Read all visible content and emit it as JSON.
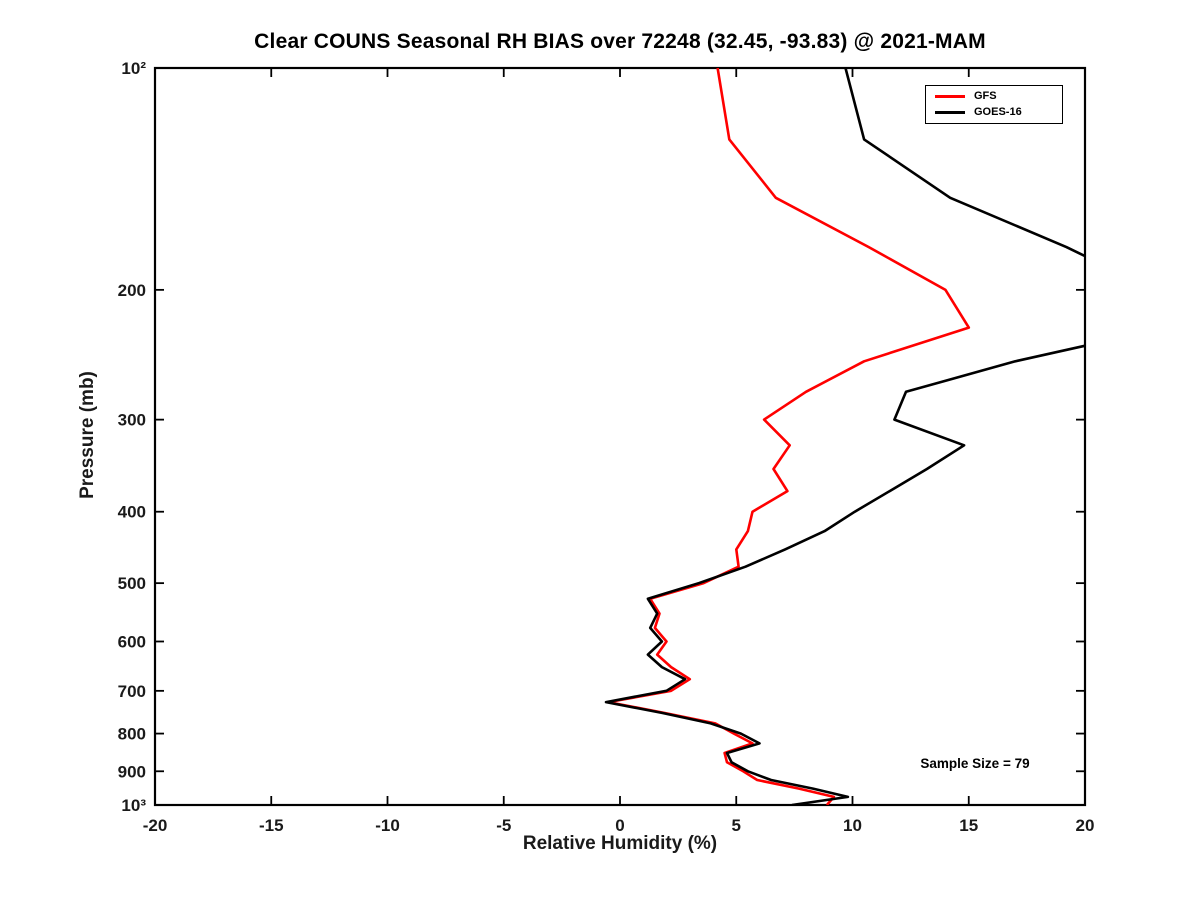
{
  "chart_data": {
    "type": "line",
    "title": "Clear COUNS Seasonal RH BIAS over 72248 (32.45, -93.83) @ 2021-MAM",
    "xlabel": "Relative Humidity (%)",
    "ylabel": "Pressure (mb)",
    "annotation": "Sample Size = 79",
    "sample_size": 79,
    "xlim": [
      -20,
      20
    ],
    "ylim": [
      100,
      1000
    ],
    "y_scale": "log",
    "grid": false,
    "legend_position": "top-right",
    "x_ticks": [
      -20,
      -15,
      -10,
      -5,
      0,
      5,
      10,
      15,
      20
    ],
    "y_ticks": [
      100,
      200,
      300,
      400,
      500,
      600,
      700,
      800,
      900,
      1000
    ],
    "y_tick_labels": [
      "10²",
      "200",
      "300",
      "400",
      "500",
      "600",
      "700",
      "800",
      "900",
      "10³"
    ],
    "pressure_mb": [
      100,
      125,
      150,
      175,
      200,
      225,
      250,
      275,
      300,
      325,
      350,
      375,
      400,
      425,
      450,
      475,
      500,
      525,
      550,
      575,
      600,
      625,
      650,
      675,
      700,
      725,
      750,
      775,
      800,
      825,
      850,
      875,
      900,
      925,
      950,
      975,
      1000
    ],
    "series": [
      {
        "name": "GFS",
        "color": "#ff0000",
        "values": [
          4.2,
          4.7,
          6.7,
          10.7,
          14.0,
          15.0,
          10.5,
          8.0,
          6.2,
          7.3,
          6.6,
          7.2,
          5.7,
          5.5,
          5.0,
          5.1,
          3.6,
          1.3,
          1.7,
          1.5,
          2.0,
          1.6,
          2.2,
          3.0,
          2.2,
          -0.5,
          1.9,
          4.1,
          4.9,
          5.7,
          4.5,
          4.6,
          5.3,
          5.9,
          7.7,
          9.2,
          8.9
        ]
      },
      {
        "name": "GOES-16",
        "color": "#000000",
        "values": [
          9.7,
          10.5,
          14.2,
          19.2,
          23.0,
          23.5,
          17.0,
          12.3,
          11.8,
          14.8,
          13.2,
          11.6,
          10.1,
          8.8,
          7.1,
          5.4,
          3.4,
          1.2,
          1.6,
          1.3,
          1.8,
          1.2,
          1.8,
          2.8,
          2.0,
          -0.6,
          1.8,
          3.9,
          5.2,
          6.0,
          4.6,
          4.8,
          5.5,
          6.5,
          8.3,
          9.8,
          7.4
        ]
      }
    ]
  }
}
